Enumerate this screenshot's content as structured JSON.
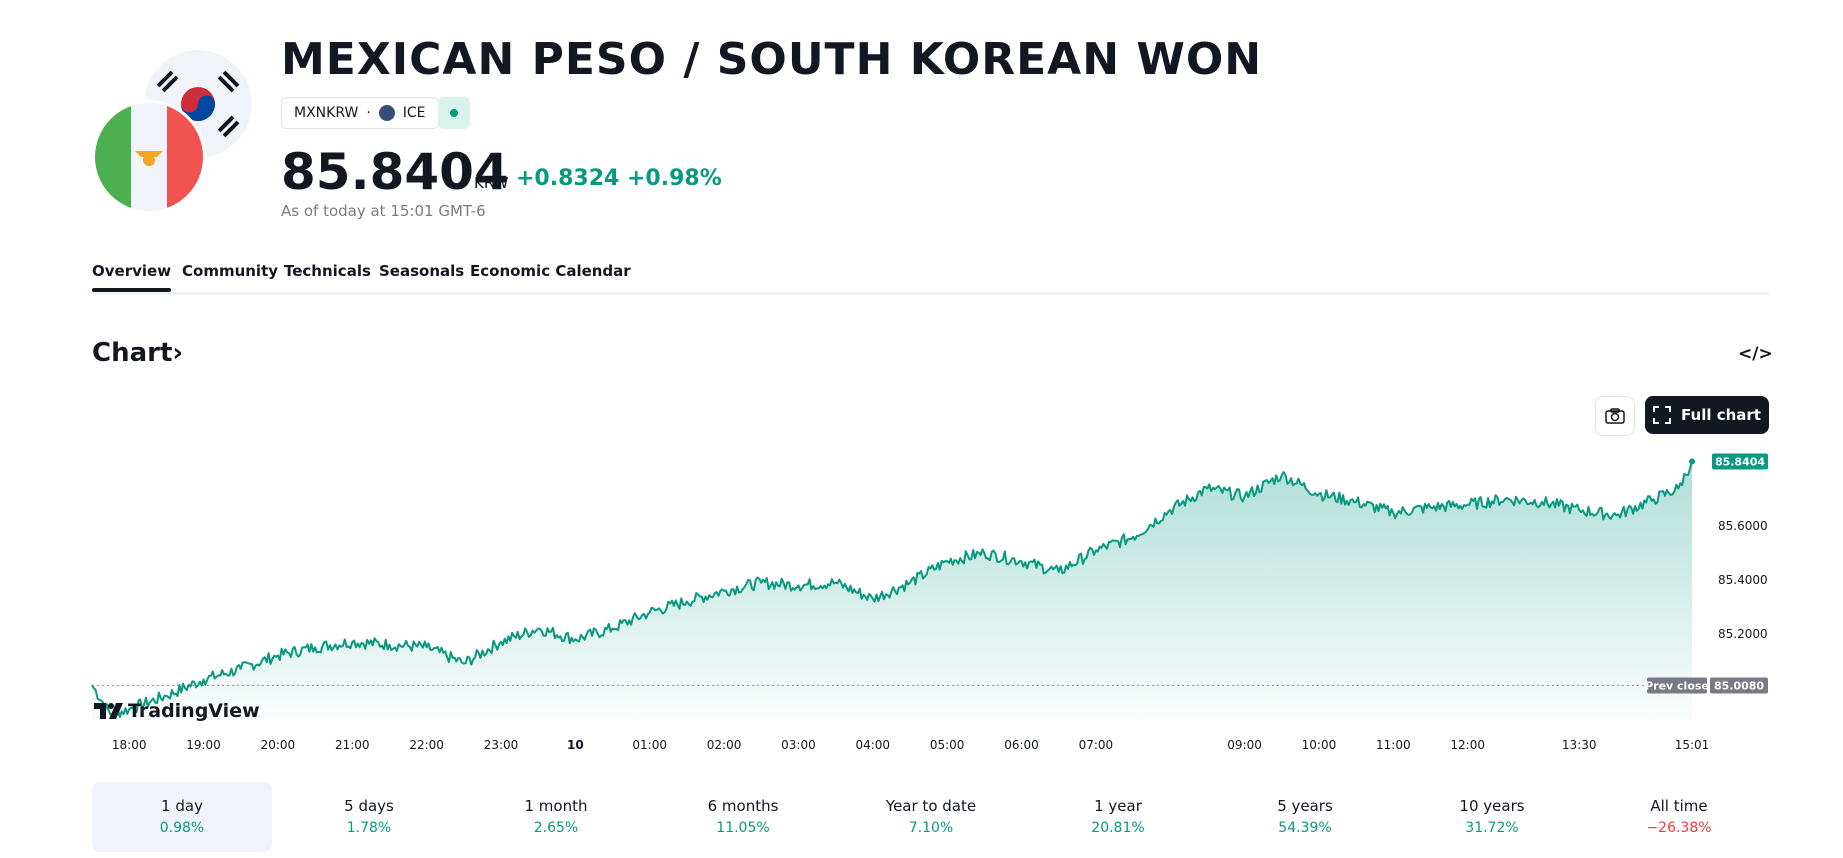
{
  "header": {
    "title": "MEXICAN PESO / SOUTH KOREAN WON",
    "symbol": "MXNKRW",
    "separator": "·",
    "exchange": "ICE",
    "price": "85.8404",
    "currency": "KRW",
    "change": "+0.8324 +0.98%",
    "as_of": "As of today at 15:01 GMT-6"
  },
  "tabs": [
    {
      "label": "Overview",
      "active": true
    },
    {
      "label": "Community"
    },
    {
      "label": "Technicals"
    },
    {
      "label": "Seasonals"
    },
    {
      "label": "Economic Calendar"
    }
  ],
  "chart_section": {
    "heading": "Chart",
    "chevron": "›",
    "embed_icon_text": "</>",
    "full_chart_label": "Full chart",
    "logo_text": "TradingView"
  },
  "chart_data": {
    "type": "area",
    "color": "#089981",
    "ylim": [
      84.88,
      85.92
    ],
    "x_ticks": [
      "18:00",
      "19:00",
      "20:00",
      "21:00",
      "22:00",
      "23:00",
      "10",
      "01:00",
      "02:00",
      "03:00",
      "04:00",
      "05:00",
      "06:00",
      "07:00",
      "09:00",
      "10:00",
      "11:00",
      "12:00",
      "13:30",
      "15:01"
    ],
    "y_ticks": [
      "85.6000",
      "85.4000",
      "85.2000"
    ],
    "last_value_label": "85.8404",
    "prev_close": {
      "label": "Prev close",
      "value": "85.0080"
    },
    "series": [
      {
        "x": "17:30",
        "y": 85.01
      },
      {
        "x": "17:45",
        "y": 84.9
      },
      {
        "x": "18:00",
        "y": 84.92
      },
      {
        "x": "18:30",
        "y": 84.97
      },
      {
        "x": "19:00",
        "y": 85.03
      },
      {
        "x": "19:30",
        "y": 85.07
      },
      {
        "x": "20:00",
        "y": 85.12
      },
      {
        "x": "20:30",
        "y": 85.15
      },
      {
        "x": "21:00",
        "y": 85.17
      },
      {
        "x": "21:30",
        "y": 85.16
      },
      {
        "x": "22:00",
        "y": 85.15
      },
      {
        "x": "22:30",
        "y": 85.09
      },
      {
        "x": "23:00",
        "y": 85.17
      },
      {
        "x": "23:30",
        "y": 85.22
      },
      {
        "x": "00:00",
        "y": 85.18
      },
      {
        "x": "00:30",
        "y": 85.22
      },
      {
        "x": "01:00",
        "y": 85.28
      },
      {
        "x": "01:30",
        "y": 85.32
      },
      {
        "x": "02:00",
        "y": 85.36
      },
      {
        "x": "02:30",
        "y": 85.39
      },
      {
        "x": "03:00",
        "y": 85.38
      },
      {
        "x": "03:30",
        "y": 85.39
      },
      {
        "x": "04:00",
        "y": 85.33
      },
      {
        "x": "04:30",
        "y": 85.39
      },
      {
        "x": "05:00",
        "y": 85.47
      },
      {
        "x": "05:30",
        "y": 85.5
      },
      {
        "x": "06:00",
        "y": 85.47
      },
      {
        "x": "06:30",
        "y": 85.43
      },
      {
        "x": "07:00",
        "y": 85.51
      },
      {
        "x": "07:30",
        "y": 85.56
      },
      {
        "x": "08:00",
        "y": 85.66
      },
      {
        "x": "08:30",
        "y": 85.74
      },
      {
        "x": "09:00",
        "y": 85.71
      },
      {
        "x": "09:30",
        "y": 85.79
      },
      {
        "x": "10:00",
        "y": 85.72
      },
      {
        "x": "10:30",
        "y": 85.69
      },
      {
        "x": "11:00",
        "y": 85.65
      },
      {
        "x": "11:30",
        "y": 85.67
      },
      {
        "x": "12:00",
        "y": 85.68
      },
      {
        "x": "12:30",
        "y": 85.7
      },
      {
        "x": "13:00",
        "y": 85.69
      },
      {
        "x": "13:30",
        "y": 85.66
      },
      {
        "x": "14:00",
        "y": 85.64
      },
      {
        "x": "14:30",
        "y": 85.7
      },
      {
        "x": "14:50",
        "y": 85.74
      },
      {
        "x": "15:01",
        "y": 85.84
      }
    ]
  },
  "periods": [
    {
      "label": "1 day",
      "value": "0.98%",
      "trend": "up",
      "selected": true
    },
    {
      "label": "5 days",
      "value": "1.78%",
      "trend": "up"
    },
    {
      "label": "1 month",
      "value": "2.65%",
      "trend": "up"
    },
    {
      "label": "6 months",
      "value": "11.05%",
      "trend": "up"
    },
    {
      "label": "Year to date",
      "value": "7.10%",
      "trend": "up"
    },
    {
      "label": "1 year",
      "value": "20.81%",
      "trend": "up"
    },
    {
      "label": "5 years",
      "value": "54.39%",
      "trend": "up"
    },
    {
      "label": "10 years",
      "value": "31.72%",
      "trend": "up"
    },
    {
      "label": "All time",
      "value": "−26.38%",
      "trend": "down"
    }
  ]
}
